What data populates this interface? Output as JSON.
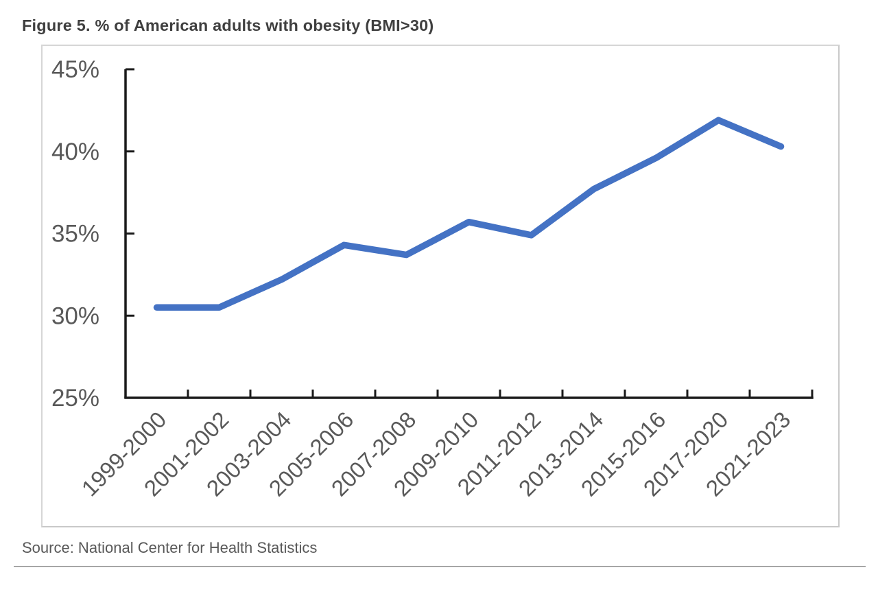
{
  "chart_data": {
    "type": "line",
    "title": "Figure 5. % of American adults with obesity (BMI>30)",
    "source": "Source: National Center for Health Statistics",
    "categories": [
      "1999-2000",
      "2001-2002",
      "2003-2004",
      "2005-2006",
      "2007-2008",
      "2009-2010",
      "2011-2012",
      "2013-2014",
      "2015-2016",
      "2017-2020",
      "2021-2023"
    ],
    "series": [
      {
        "name": "% of American adults with obesity (BMI>30)",
        "values": [
          30.5,
          30.5,
          32.2,
          34.3,
          33.7,
          35.7,
          34.9,
          37.7,
          39.6,
          41.9,
          40.3
        ]
      }
    ],
    "xlabel": "",
    "ylabel": "",
    "ylim": [
      25,
      45
    ],
    "yticks": [
      25,
      30,
      35,
      40,
      45
    ],
    "ytick_labels": [
      "25%",
      "30%",
      "35%",
      "40%",
      "45%"
    ],
    "xtick_rotation_deg": 45,
    "grid": false,
    "legend": "none",
    "line_color": "#4472C4",
    "axis_color": "#1a1a1a",
    "tick_label_color": "#595959",
    "title_color": "#3f3f3f",
    "source_color": "#595959"
  }
}
